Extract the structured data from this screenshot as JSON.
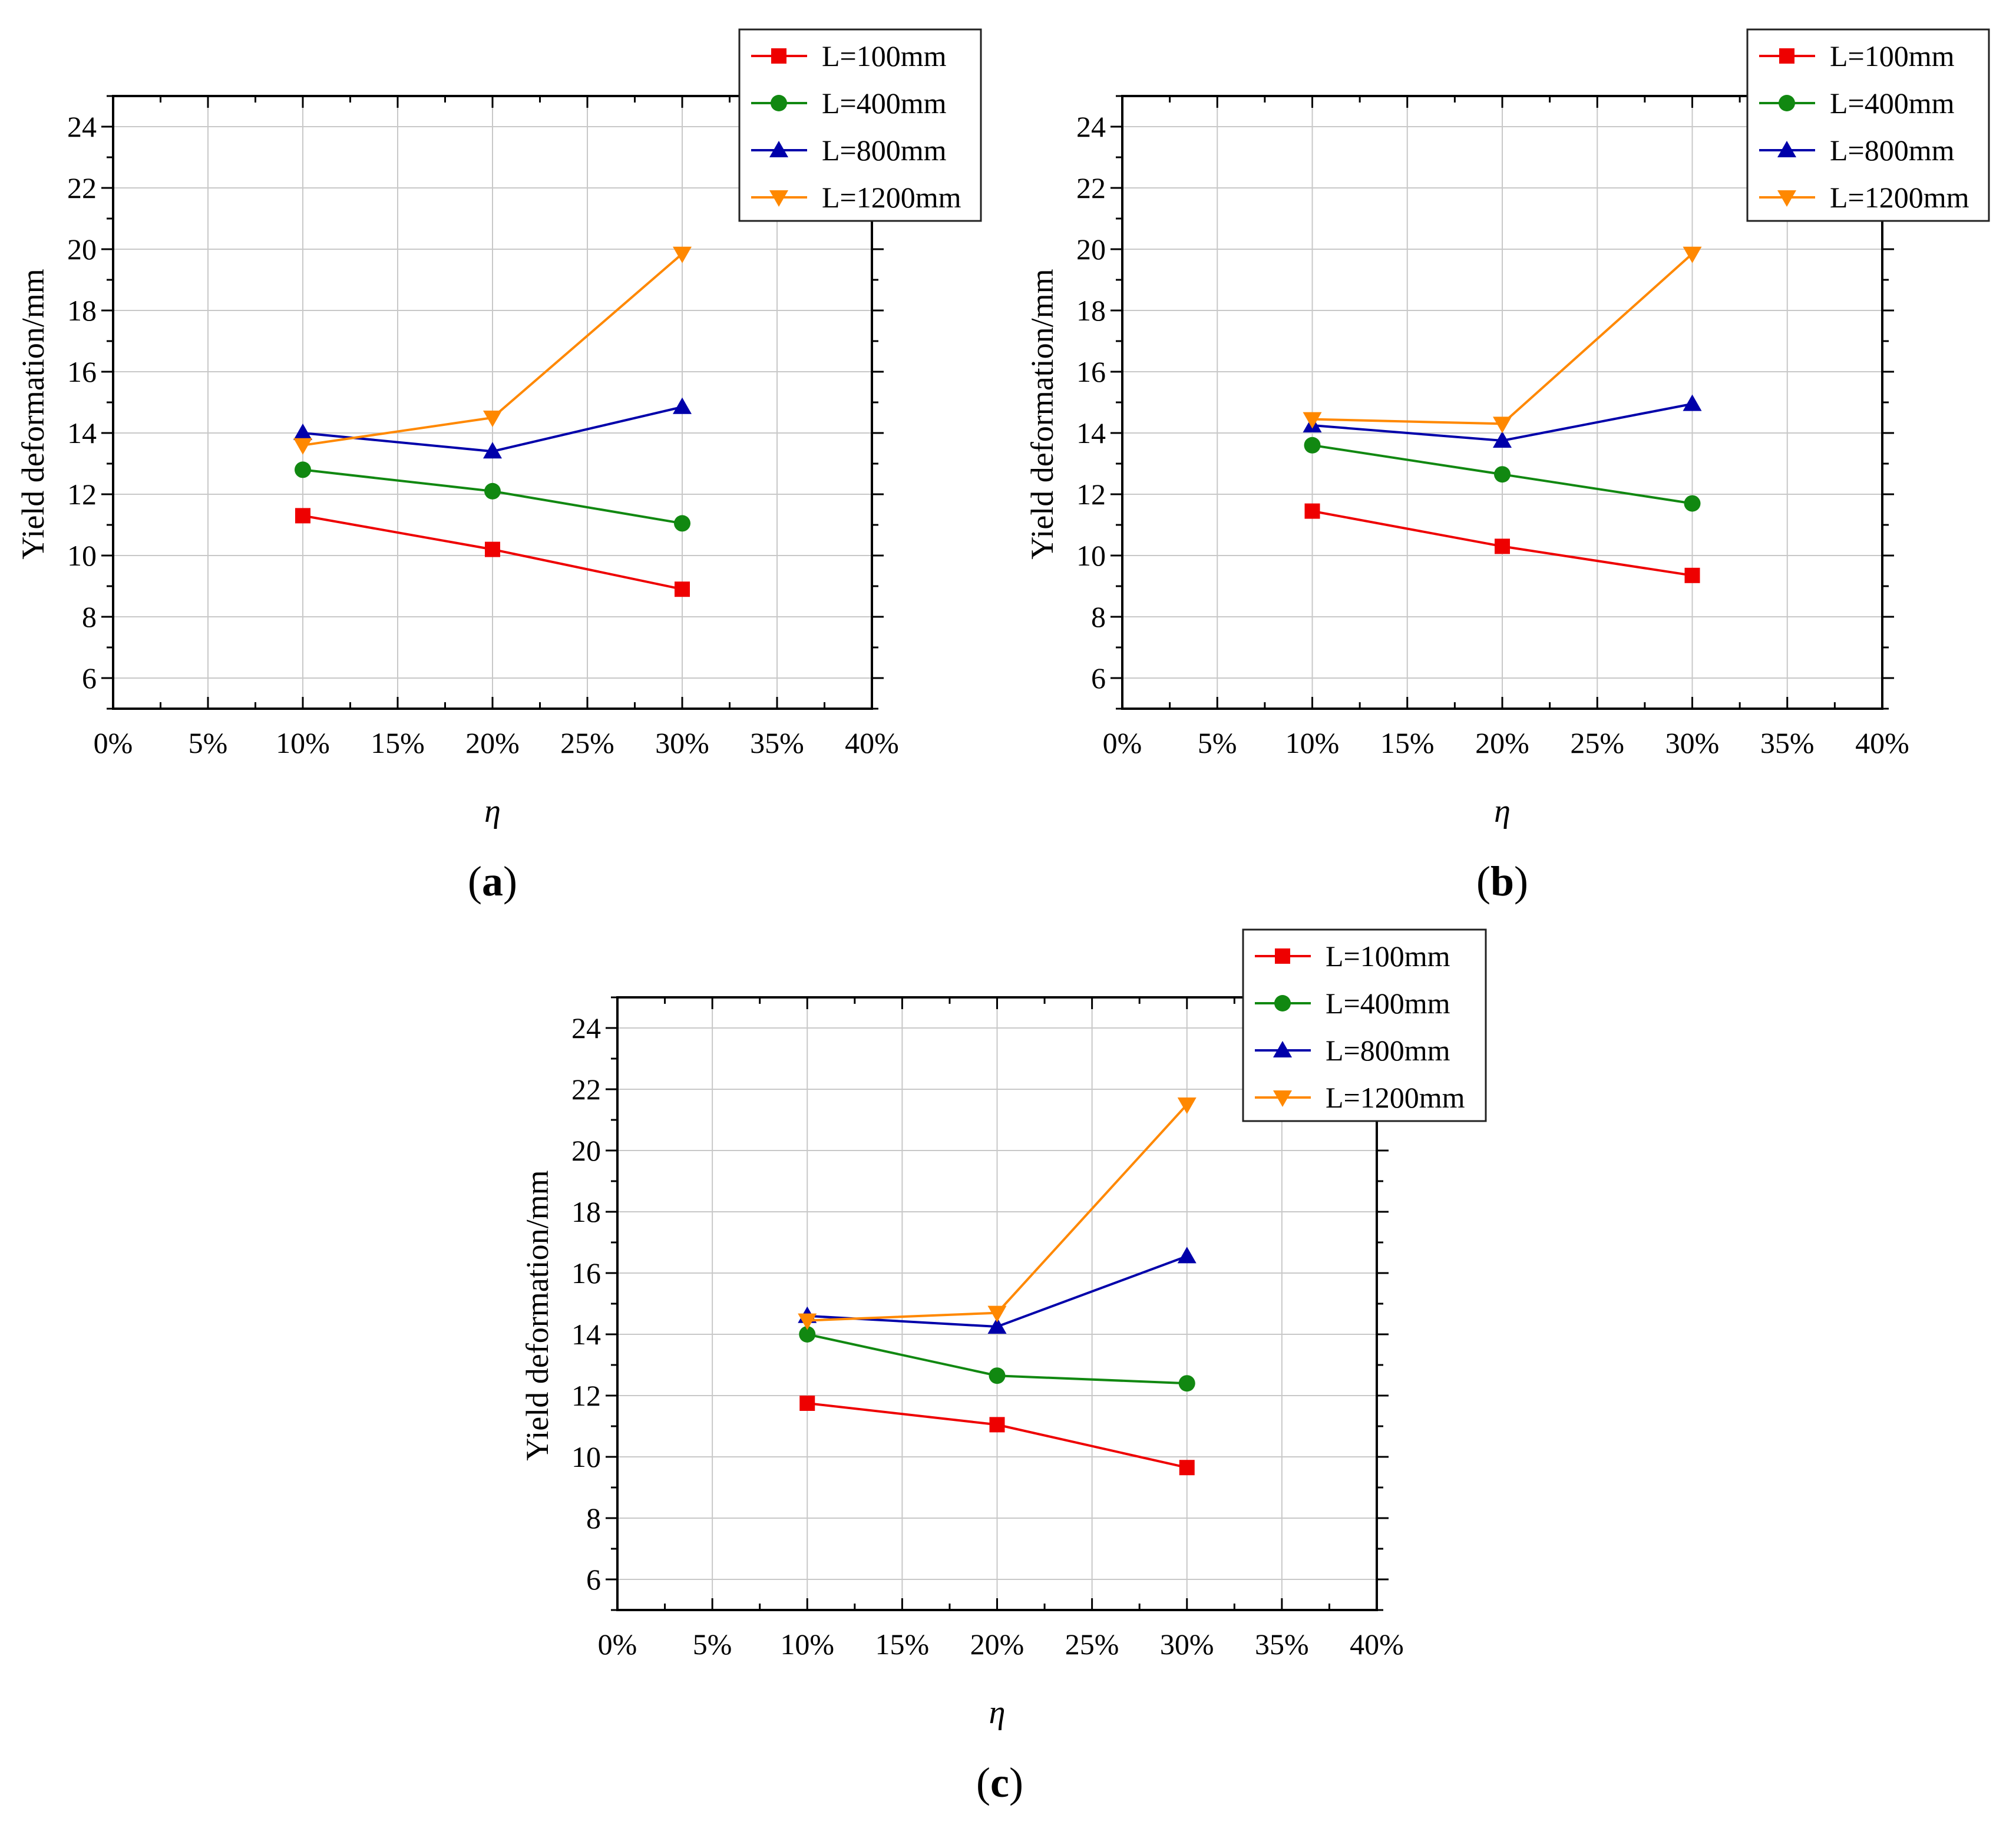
{
  "chart_data": [
    {
      "type": "line",
      "panel_label": "a",
      "xlabel": "η",
      "ylabel": "Yield deformation/mm",
      "x": [
        10,
        20,
        30
      ],
      "xlim": [
        0,
        40
      ],
      "ylim": [
        5,
        25
      ],
      "x_ticks": [
        "0%",
        "5%",
        "10%",
        "15%",
        "20%",
        "25%",
        "30%",
        "35%",
        "40%"
      ],
      "y_ticks": [
        "6",
        "8",
        "10",
        "12",
        "14",
        "16",
        "18",
        "20",
        "22",
        "24"
      ],
      "grid": true,
      "legend_position": "top-right",
      "series": [
        {
          "name": "L=100mm",
          "color": "#ee0000",
          "marker": "square",
          "values": [
            11.3,
            10.2,
            8.9
          ]
        },
        {
          "name": "L=400mm",
          "color": "#118811",
          "marker": "circle",
          "values": [
            12.8,
            12.1,
            11.05
          ]
        },
        {
          "name": "L=800mm",
          "color": "#0000aa",
          "marker": "triangle-up",
          "values": [
            14.0,
            13.4,
            14.85
          ]
        },
        {
          "name": "L=1200mm",
          "color": "#ff8800",
          "marker": "triangle-down",
          "values": [
            13.6,
            14.5,
            19.85
          ]
        }
      ]
    },
    {
      "type": "line",
      "panel_label": "b",
      "xlabel": "η",
      "ylabel": "Yield deformation/mm",
      "x": [
        10,
        20,
        30
      ],
      "xlim": [
        0,
        40
      ],
      "ylim": [
        5,
        25
      ],
      "x_ticks": [
        "0%",
        "5%",
        "10%",
        "15%",
        "20%",
        "25%",
        "30%",
        "35%",
        "40%"
      ],
      "y_ticks": [
        "6",
        "8",
        "10",
        "12",
        "14",
        "16",
        "18",
        "20",
        "22",
        "24"
      ],
      "grid": true,
      "legend_position": "top-right",
      "series": [
        {
          "name": "L=100mm",
          "color": "#ee0000",
          "marker": "square",
          "values": [
            11.45,
            10.3,
            9.35
          ]
        },
        {
          "name": "L=400mm",
          "color": "#118811",
          "marker": "circle",
          "values": [
            13.6,
            12.65,
            11.7
          ]
        },
        {
          "name": "L=800mm",
          "color": "#0000aa",
          "marker": "triangle-up",
          "values": [
            14.25,
            13.75,
            14.95
          ]
        },
        {
          "name": "L=1200mm",
          "color": "#ff8800",
          "marker": "triangle-down",
          "values": [
            14.45,
            14.3,
            19.85
          ]
        }
      ]
    },
    {
      "type": "line",
      "panel_label": "c",
      "xlabel": "η",
      "ylabel": "Yield deformation/mm",
      "x": [
        10,
        20,
        30
      ],
      "xlim": [
        0,
        40
      ],
      "ylim": [
        5,
        25
      ],
      "x_ticks": [
        "0%",
        "5%",
        "10%",
        "15%",
        "20%",
        "25%",
        "30%",
        "35%",
        "40%"
      ],
      "y_ticks": [
        "6",
        "8",
        "10",
        "12",
        "14",
        "16",
        "18",
        "20",
        "22",
        "24"
      ],
      "grid": true,
      "legend_position": "top-right",
      "series": [
        {
          "name": "L=100mm",
          "color": "#ee0000",
          "marker": "square",
          "values": [
            11.75,
            11.05,
            9.65
          ]
        },
        {
          "name": "L=400mm",
          "color": "#118811",
          "marker": "circle",
          "values": [
            14.0,
            12.65,
            12.4
          ]
        },
        {
          "name": "L=800mm",
          "color": "#0000aa",
          "marker": "triangle-up",
          "values": [
            14.6,
            14.25,
            16.55
          ]
        },
        {
          "name": "L=1200mm",
          "color": "#ff8800",
          "marker": "triangle-down",
          "values": [
            14.45,
            14.7,
            21.5
          ]
        }
      ]
    }
  ]
}
